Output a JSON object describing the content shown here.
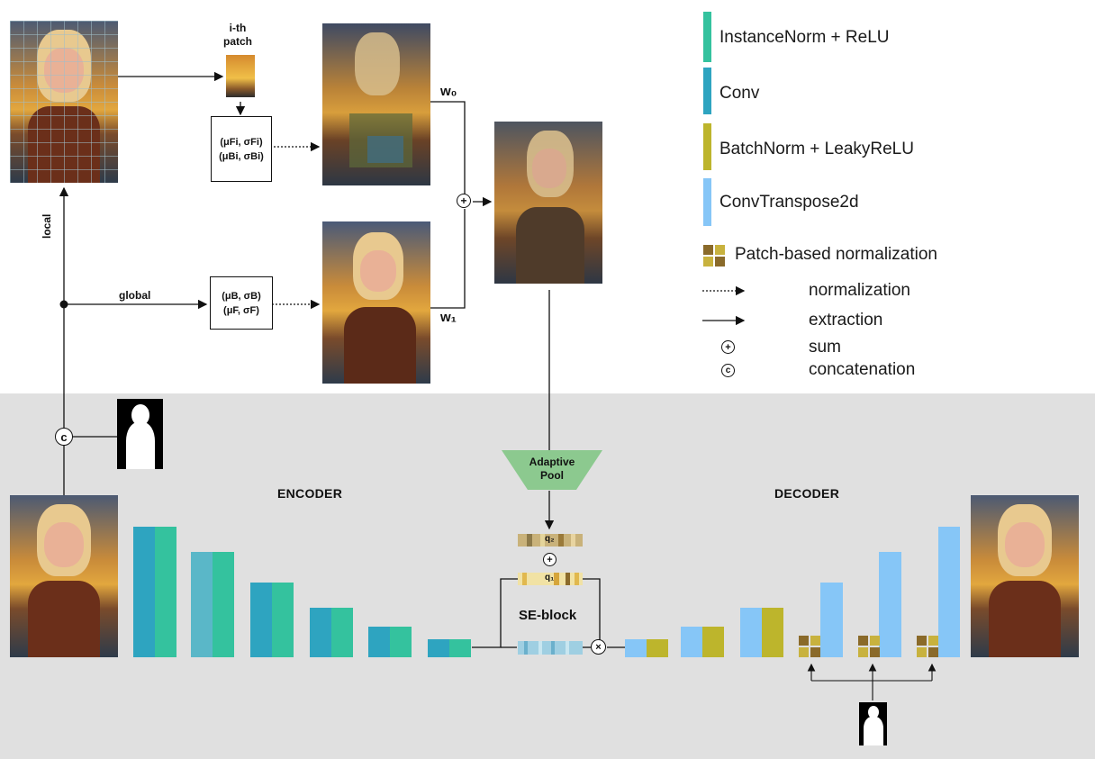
{
  "legend": {
    "items": [
      {
        "label": "InstanceNorm + ReLU",
        "color": "#34c29e"
      },
      {
        "label": "Conv",
        "color": "#2ea4c0"
      },
      {
        "label": "BatchNorm + LeakyReLU",
        "color": "#bdb52c"
      },
      {
        "label": "ConvTranspose2d",
        "color": "#86c6f7"
      }
    ],
    "patch_label": "Patch-based normalization",
    "normalization_label": "normalization",
    "extraction_label": "extraction",
    "sum_label": "sum",
    "concat_label": "concatenation"
  },
  "diagram": {
    "patch_label": "i-th\npatch",
    "local_label": "local",
    "global_label": "global",
    "w0": "w₀",
    "w1": "w₁",
    "local_stats_line1": "(μFi, σFi)",
    "local_stats_line2": "(μBi, σBi)",
    "global_stats_line1": "(μB, σB)",
    "global_stats_line2": "(μF, σF)",
    "adaptive_pool": "Adaptive\nPool",
    "q2": "q₂",
    "q1": "q₁",
    "se_block": "SE-block",
    "encoder": "ENCODER",
    "decoder": "DECODER",
    "concat_symbol": "c",
    "sum_symbol": "+"
  },
  "colors": {
    "band": "#e0e0e0",
    "instance_norm": "#34c29e",
    "conv": "#2ea4c0",
    "batch_norm": "#bdb52c",
    "conv_transpose": "#86c6f7",
    "pool": "#8cc98f"
  }
}
